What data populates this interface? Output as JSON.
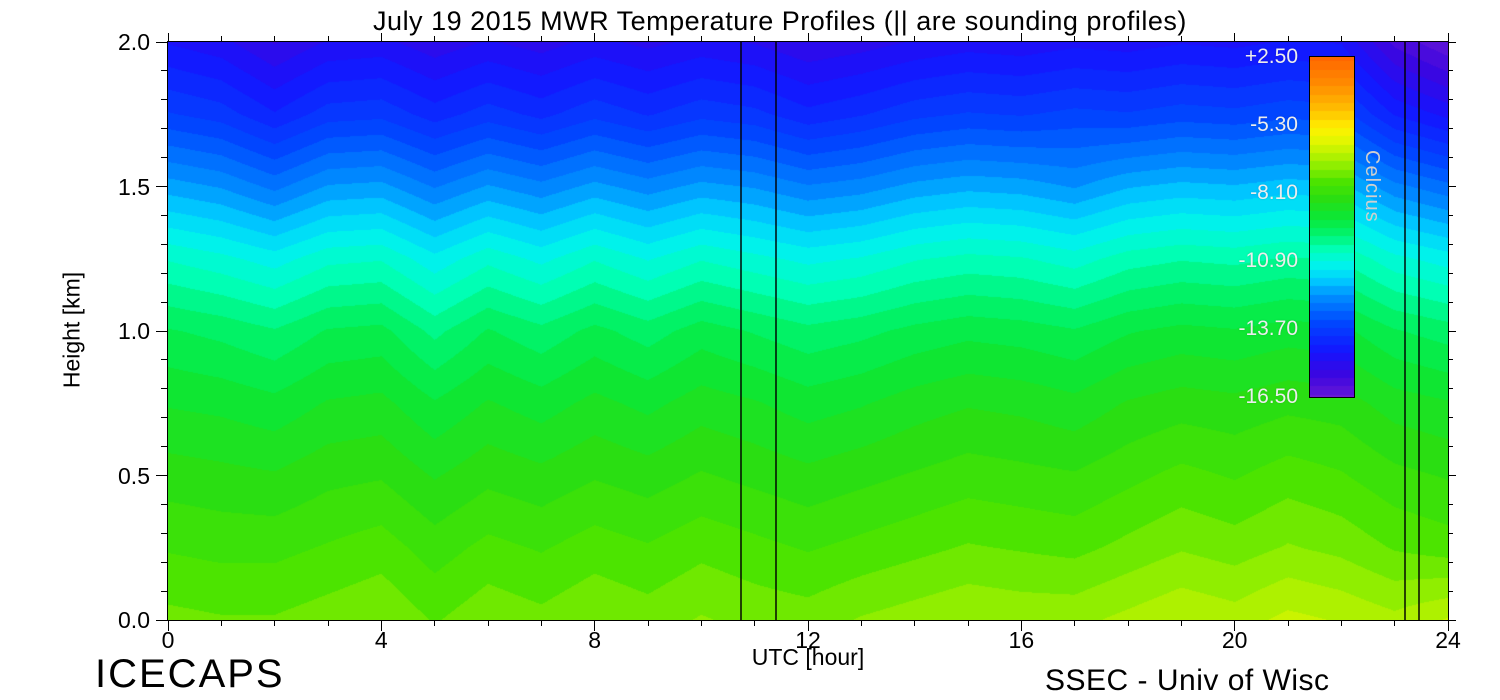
{
  "footer": {
    "left": "ICECAPS",
    "right": "SSEC - Univ of Wisc"
  },
  "chart_data": {
    "type": "heatmap",
    "title": "July 19 2015 MWR Temperature Profiles (|| are sounding profiles)",
    "xlabel": "UTC [hour]",
    "ylabel": "Height [km]",
    "xlim": [
      0,
      24
    ],
    "ylim": [
      0.0,
      2.0
    ],
    "x_ticks": [
      0,
      4,
      8,
      12,
      16,
      20,
      24
    ],
    "x_tick_labels": [
      "0",
      "4",
      "8",
      "12",
      "16",
      "20",
      "24"
    ],
    "x_minor_step": 1,
    "y_ticks": [
      0.0,
      0.5,
      1.0,
      1.5,
      2.0
    ],
    "y_tick_labels": [
      "0.0",
      "0.5",
      "1.0",
      "1.5",
      "2.0"
    ],
    "y_minor_step": 0.1,
    "grid": false,
    "hours": [
      0,
      1,
      2,
      3,
      4,
      5,
      6,
      7,
      8,
      9,
      10,
      11,
      12,
      13,
      14,
      15,
      16,
      17,
      18,
      19,
      20,
      21,
      22,
      23,
      24
    ],
    "heights_km": [
      0.0,
      0.25,
      0.5,
      0.75,
      1.0,
      1.25,
      1.5,
      1.75,
      2.0
    ],
    "temperature_c": [
      [
        -4.6,
        -4.7,
        -4.7,
        -4.5,
        -4.3,
        -4.8,
        -4.4,
        -4.6,
        -4.3,
        -4.5,
        -4.2,
        -4.4,
        -4.5,
        -4.2,
        -4.0,
        -3.8,
        -3.9,
        -3.9,
        -3.6,
        -3.3,
        -3.5,
        -3.1,
        -3.3,
        -3.6,
        -3.2
      ],
      [
        -5.3,
        -5.4,
        -5.4,
        -5.2,
        -5.0,
        -5.5,
        -5.1,
        -5.3,
        -5.0,
        -5.2,
        -4.9,
        -5.1,
        -5.3,
        -5.1,
        -4.9,
        -4.7,
        -4.8,
        -4.9,
        -4.6,
        -4.3,
        -4.5,
        -4.2,
        -4.4,
        -4.8,
        -5.0
      ],
      [
        -6.0,
        -6.1,
        -6.2,
        -5.9,
        -5.8,
        -6.3,
        -5.9,
        -6.1,
        -5.8,
        -6.0,
        -5.7,
        -5.9,
        -6.1,
        -5.9,
        -5.7,
        -5.5,
        -5.6,
        -5.7,
        -5.4,
        -5.1,
        -5.3,
        -5.0,
        -5.2,
        -5.6,
        -5.8
      ],
      [
        -6.8,
        -6.9,
        -7.1,
        -6.7,
        -6.6,
        -7.2,
        -6.7,
        -7.0,
        -6.6,
        -6.9,
        -6.5,
        -6.7,
        -7.0,
        -6.8,
        -6.5,
        -6.3,
        -6.4,
        -6.6,
        -6.2,
        -6.0,
        -6.1,
        -5.9,
        -6.0,
        -6.5,
        -6.7
      ],
      [
        -7.7,
        -7.9,
        -8.2,
        -7.7,
        -7.6,
        -8.4,
        -7.7,
        -8.1,
        -7.6,
        -8.0,
        -7.5,
        -7.8,
        -8.1,
        -7.9,
        -7.6,
        -7.4,
        -7.5,
        -7.7,
        -7.3,
        -7.1,
        -7.2,
        -7.0,
        -7.1,
        -7.7,
        -8.0
      ],
      [
        -9.3,
        -9.6,
        -10.0,
        -9.4,
        -9.3,
        -10.1,
        -9.4,
        -9.9,
        -9.3,
        -9.8,
        -9.3,
        -9.6,
        -9.9,
        -9.7,
        -9.3,
        -9.1,
        -9.2,
        -9.5,
        -9.0,
        -8.8,
        -8.9,
        -8.7,
        -8.8,
        -9.6,
        -10.0
      ],
      [
        -11.5,
        -11.8,
        -12.4,
        -11.7,
        -11.6,
        -12.3,
        -11.7,
        -12.1,
        -11.6,
        -12.0,
        -11.6,
        -11.8,
        -12.2,
        -12.0,
        -11.6,
        -11.4,
        -11.5,
        -11.8,
        -11.3,
        -11.1,
        -11.2,
        -11.0,
        -11.1,
        -12.1,
        -12.6
      ],
      [
        -13.7,
        -14.0,
        -14.7,
        -14.0,
        -13.9,
        -14.5,
        -14.0,
        -14.4,
        -13.9,
        -14.3,
        -13.9,
        -14.1,
        -14.6,
        -14.3,
        -13.9,
        -13.7,
        -13.8,
        -13.6,
        -13.7,
        -13.5,
        -13.6,
        -13.4,
        -13.5,
        -14.8,
        -15.4
      ],
      [
        -15.3,
        -15.6,
        -16.3,
        -15.7,
        -15.6,
        -16.1,
        -15.7,
        -16.0,
        -15.6,
        -15.9,
        -15.6,
        -15.8,
        -16.2,
        -16.0,
        -15.7,
        -15.5,
        -15.6,
        -15.4,
        -15.5,
        -15.3,
        -15.4,
        -15.2,
        -15.3,
        -16.9,
        -17.7
      ]
    ],
    "sounding_hours": [
      10.75,
      11.4,
      23.2,
      23.45
    ],
    "contour_step_c": 0.5,
    "colorbar": {
      "title": "Celcius",
      "labels": [
        "+2.50",
        "-5.30",
        "-8.10",
        "-10.90",
        "-13.70",
        "-16.50"
      ],
      "range_top_to_bottom": [
        2.5,
        -17.9
      ],
      "color_stops": [
        [
          -18.5,
          "#7a1fd2"
        ],
        [
          -16.6,
          "#3c06e0"
        ],
        [
          -15.2,
          "#1414ff"
        ],
        [
          -13.4,
          "#0048ff"
        ],
        [
          -11.8,
          "#0090ff"
        ],
        [
          -10.8,
          "#00d2ff"
        ],
        [
          -9.9,
          "#00f6e8"
        ],
        [
          -9.0,
          "#00ffb4"
        ],
        [
          -8.2,
          "#00f472"
        ],
        [
          -7.2,
          "#0ae838"
        ],
        [
          -6.0,
          "#2ade12"
        ],
        [
          -5.0,
          "#4ce400"
        ],
        [
          -4.2,
          "#84ec00"
        ],
        [
          -3.4,
          "#b4f200"
        ],
        [
          -2.6,
          "#e0f600"
        ],
        [
          -1.8,
          "#fff200"
        ],
        [
          -0.6,
          "#ffbc00"
        ],
        [
          1.0,
          "#ff8800"
        ],
        [
          2.5,
          "#ff6600"
        ]
      ]
    }
  }
}
